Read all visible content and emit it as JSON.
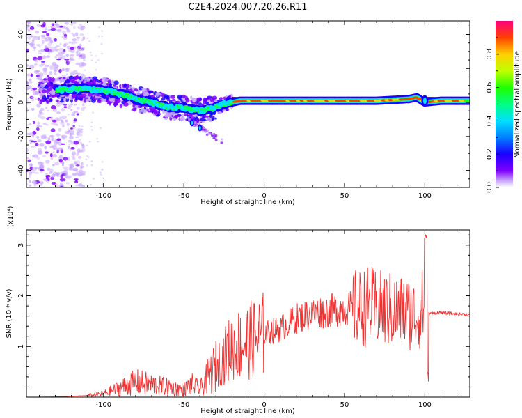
{
  "title": "C2E4.2024.007.20.26.R11",
  "chart_data": [
    {
      "type": "heatmap",
      "xlabel": "Height of straight line (km)",
      "ylabel": "Frequency (Hz)",
      "xlim": [
        -148,
        128
      ],
      "ylim": [
        -50,
        48
      ],
      "xticks": [
        "-100",
        "-50",
        "0",
        "50",
        "100"
      ],
      "yticks": [
        "40",
        "20",
        "0",
        "-20",
        "-40"
      ],
      "colorbar": {
        "label": "Normalized spectral amplitude",
        "range": [
          0,
          1
        ],
        "ticks": [
          "0.0",
          "0.2",
          "0.4",
          "0.6",
          "0.8"
        ]
      },
      "ridge": {
        "x": [
          -130,
          -120,
          -110,
          -100,
          -90,
          -80,
          -70,
          -60,
          -50,
          -45,
          -40,
          -35,
          -30,
          -25,
          -20,
          -15,
          -10,
          0,
          10,
          30,
          50,
          70,
          90,
          95,
          100,
          110,
          128
        ],
        "y": [
          7,
          8,
          8,
          7,
          5,
          2,
          0,
          -3,
          -3,
          -4,
          -5,
          -4,
          -3,
          -1,
          0,
          1,
          1,
          1,
          1,
          1,
          1,
          1,
          2,
          3,
          0,
          1,
          1
        ]
      }
    },
    {
      "type": "line",
      "xlabel": "Height of straight line (km)",
      "ylabel": "SNR (10 * v/v)",
      "multiplier": "(x10⁴)",
      "xlim": [
        -148,
        128
      ],
      "ylim": [
        0,
        33000
      ],
      "xticks": [
        "-100",
        "-50",
        "0",
        "50",
        "100"
      ],
      "yticks": [
        "1",
        "2",
        "3"
      ],
      "color": "#ee3333",
      "envelope": {
        "x": [
          -148,
          -130,
          -110,
          -100,
          -90,
          -80,
          -70,
          -60,
          -50,
          -45,
          -40,
          -35,
          -30,
          -25,
          -20,
          -10,
          0,
          10,
          20,
          30,
          40,
          50,
          60,
          65,
          70,
          80,
          90,
          95,
          99,
          101,
          102,
          105,
          110,
          120,
          128
        ],
        "y": [
          0,
          50,
          300,
          700,
          1800,
          3000,
          2500,
          2000,
          1500,
          2500,
          1600,
          4000,
          6000,
          8000,
          10000,
          11000,
          12500,
          13500,
          15500,
          16500,
          17000,
          17500,
          17500,
          18000,
          17500,
          17000,
          16500,
          16000,
          18000,
          22000,
          16500,
          16500,
          16700,
          16400,
          16300
        ]
      }
    }
  ]
}
